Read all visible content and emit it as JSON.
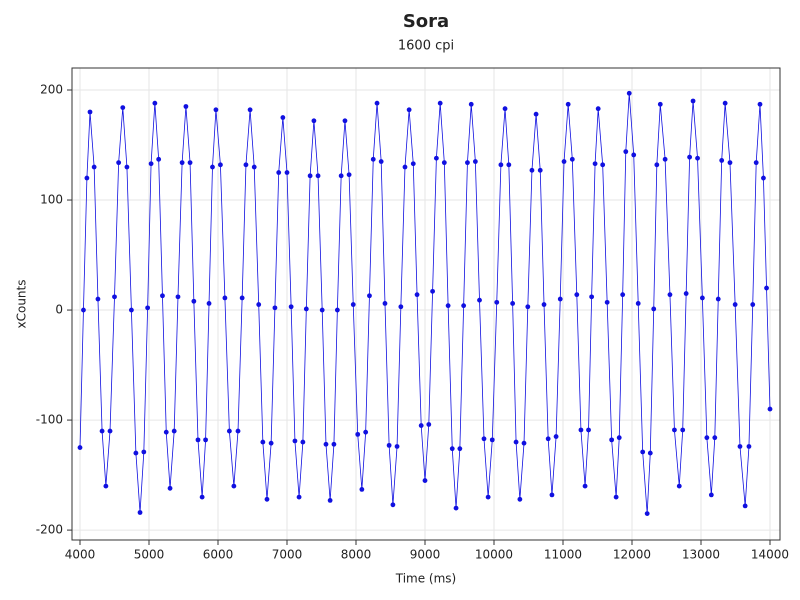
{
  "chart_data": {
    "type": "line",
    "title": "Sora",
    "subtitle": "1600 cpi",
    "x_label": "Time (ms)",
    "y_label": "xCounts",
    "xlim": [
      3884,
      14145
    ],
    "ylim": [
      -209,
      220
    ],
    "xticks": [
      4000,
      5000,
      6000,
      7000,
      8000,
      9000,
      10000,
      11000,
      12000,
      13000,
      14000
    ],
    "yticks": [
      -200,
      -100,
      0,
      100,
      200
    ],
    "grid": true,
    "markers": true,
    "x": [
      4000,
      4050,
      4100,
      4145,
      4205,
      4260,
      4320,
      4375,
      4435,
      4500,
      4560,
      4620,
      4680,
      4745,
      4810,
      4870,
      4925,
      4980,
      5030,
      5085,
      5140,
      5195,
      5250,
      5305,
      5365,
      5420,
      5480,
      5535,
      5595,
      5650,
      5710,
      5770,
      5820,
      5870,
      5920,
      5970,
      6035,
      6100,
      6165,
      6230,
      6290,
      6350,
      6405,
      6465,
      6525,
      6590,
      6650,
      6710,
      6770,
      6825,
      6880,
      6940,
      7000,
      7060,
      7115,
      7175,
      7230,
      7280,
      7335,
      7390,
      7450,
      7510,
      7565,
      7625,
      7680,
      7730,
      7785,
      7840,
      7900,
      7960,
      8025,
      8085,
      8140,
      8195,
      8250,
      8305,
      8365,
      8420,
      8480,
      8535,
      8595,
      8650,
      8710,
      8770,
      8830,
      8885,
      8945,
      9000,
      9055,
      9110,
      9165,
      9220,
      9280,
      9335,
      9395,
      9450,
      9505,
      9560,
      9615,
      9670,
      9730,
      9790,
      9855,
      9915,
      9975,
      10040,
      10100,
      10160,
      10215,
      10270,
      10320,
      10375,
      10435,
      10490,
      10550,
      10610,
      10670,
      10725,
      10785,
      10840,
      10900,
      10960,
      11015,
      11075,
      11135,
      11200,
      11260,
      11320,
      11370,
      11415,
      11465,
      11510,
      11575,
      11640,
      11705,
      11770,
      11815,
      11865,
      11910,
      11960,
      12025,
      12090,
      12155,
      12220,
      12265,
      12315,
      12360,
      12410,
      12480,
      12550,
      12615,
      12685,
      12735,
      12785,
      12835,
      12885,
      12950,
      13020,
      13085,
      13150,
      13200,
      13250,
      13300,
      13350,
      13420,
      13495,
      13565,
      13640,
      13695,
      13750,
      13800,
      13855,
      13905,
      13950,
      14000
    ],
    "series": [
      {
        "color": "#1010e0",
        "values": [
          -125,
          0,
          120,
          180,
          130,
          10,
          -110,
          -160,
          -110,
          12,
          134,
          184,
          130,
          0,
          -130,
          -184,
          -129,
          2,
          133,
          188,
          137,
          13,
          -111,
          -162,
          -110,
          12,
          134,
          185,
          134,
          8,
          -118,
          -170,
          -118,
          6,
          130,
          182,
          132,
          11,
          -110,
          -160,
          -110,
          11,
          132,
          182,
          130,
          5,
          -120,
          -172,
          -121,
          2,
          125,
          175,
          125,
          3,
          -119,
          -170,
          -120,
          1,
          122,
          172,
          122,
          0,
          -122,
          -173,
          -122,
          0,
          122,
          172,
          123,
          5,
          -113,
          -163,
          -111,
          13,
          137,
          188,
          135,
          6,
          -123,
          -177,
          -124,
          3,
          130,
          182,
          133,
          14,
          -105,
          -155,
          -104,
          17,
          138,
          188,
          134,
          4,
          -126,
          -180,
          -126,
          4,
          134,
          187,
          135,
          9,
          -117,
          -170,
          -118,
          7,
          132,
          183,
          132,
          6,
          -120,
          -172,
          -121,
          3,
          127,
          178,
          127,
          5,
          -117,
          -168,
          -115,
          10,
          135,
          187,
          137,
          14,
          -109,
          -160,
          -109,
          12,
          133,
          183,
          132,
          7,
          -118,
          -170,
          -116,
          14,
          144,
          197,
          141,
          6,
          -129,
          -185,
          -130,
          1,
          132,
          187,
          137,
          14,
          -109,
          -160,
          -109,
          15,
          139,
          190,
          138,
          11,
          -116,
          -168,
          -116,
          10,
          136,
          188,
          134,
          5,
          -124,
          -178,
          -124,
          5,
          134,
          187,
          120,
          20,
          -90
        ]
      }
    ]
  }
}
